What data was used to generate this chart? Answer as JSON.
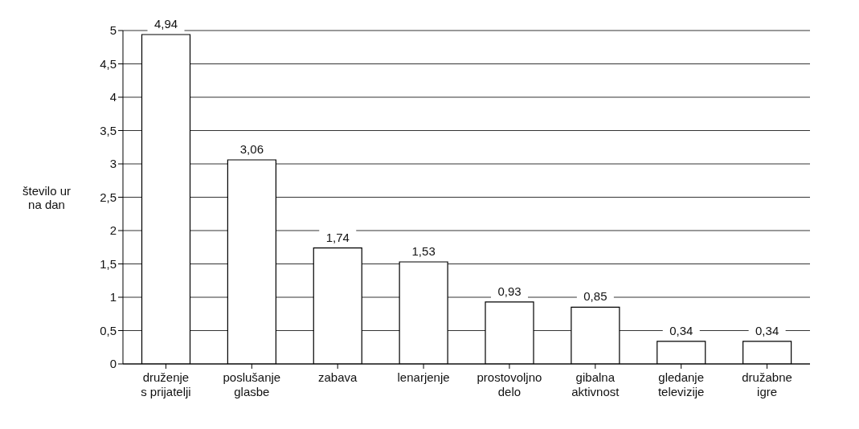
{
  "chart_data": {
    "type": "bar",
    "ylabel": "število ur na dan",
    "categories": [
      "druženje s prijatelji",
      "poslušanje glasbe",
      "zabava",
      "lenarjenje",
      "prostovoljno delo",
      "gibalna aktivnost",
      "gledanje televizije",
      "družabne igre"
    ],
    "values": [
      4.94,
      3.06,
      1.74,
      1.53,
      0.93,
      0.85,
      0.34,
      0.34
    ],
    "value_labels": [
      "4,94",
      "3,06",
      "1,74",
      "1,53",
      "0,93",
      "0,85",
      "0,34",
      "0,34"
    ],
    "color": "#ffffff",
    "ylim": [
      0,
      5
    ],
    "yticks": [
      0,
      {
        "value": 0.5,
        "label": "0,5"
      },
      1,
      {
        "value": 1.5,
        "label": "1,5"
      },
      2,
      {
        "value": 2.5,
        "label": "2,5"
      },
      3,
      {
        "value": 3.5,
        "label": "3,5"
      },
      4,
      {
        "value": 4.5,
        "label": "4,5"
      },
      5
    ],
    "grid": "y"
  }
}
